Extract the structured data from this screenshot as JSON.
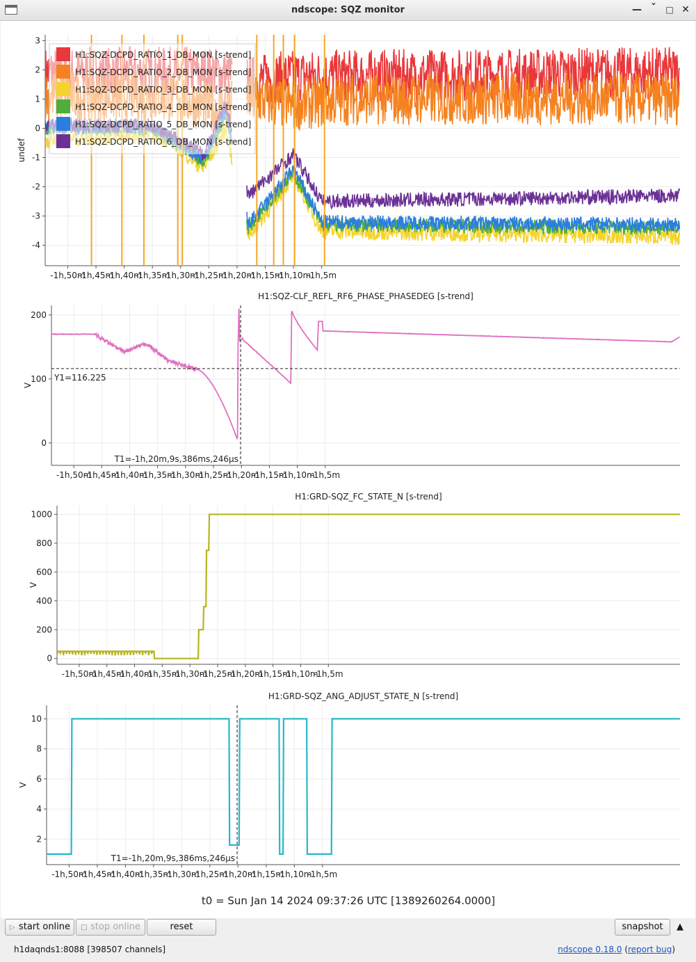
{
  "window": {
    "title": "ndscope: SQZ monitor"
  },
  "xaxis_ticks": [
    "-1h,50m",
    "-1h,45m",
    "-1h,40m",
    "-1h,35m",
    "-1h,30m",
    "-1h,25m",
    "-1h,20m",
    "-1h,15m",
    "-1h,10m",
    "-1h,5m"
  ],
  "x_range_min": [
    -114,
    -1.5
  ],
  "plots": [
    {
      "title": "",
      "ylabel": "undef",
      "ylim": [
        -4.7,
        3.2
      ],
      "yticks": [
        "3",
        "2",
        "1",
        "0",
        "-1",
        "-2",
        "-3",
        "-4"
      ],
      "legend": [
        {
          "name": "H1:SQZ-DCPD_RATIO_1_DB_MON [s-trend]",
          "color": "#e8383b"
        },
        {
          "name": "H1:SQZ-DCPD_RATIO_2_DB_MON [s-trend]",
          "color": "#f5821f"
        },
        {
          "name": "H1:SQZ-DCPD_RATIO_3_DB_MON [s-trend]",
          "color": "#f5d32d"
        },
        {
          "name": "H1:SQZ-DCPD_RATIO_4_DB_MON [s-trend]",
          "color": "#4fae3b"
        },
        {
          "name": "H1:SQZ-DCPD_RATIO_5_DB_MON [s-trend]",
          "color": "#2a7ee0"
        },
        {
          "name": "H1:SQZ-DCPD_RATIO_6_DB_MON [s-trend]",
          "color": "#6b3196"
        }
      ]
    },
    {
      "title": "H1:SQZ-CLF_REFL_RF6_PHASE_PHASEDEG [s-trend]",
      "ylabel": "V",
      "ylim": [
        -35,
        215
      ],
      "yticks": [
        "200",
        "100",
        "0"
      ],
      "color": "#e070c0",
      "cursor_y_label": "Y1=116.225",
      "cursor_y_value": 116.225,
      "cursor_t_label": "T1=-1h,20m,9s,386ms,246μs",
      "cursor_t_min": -80.16
    },
    {
      "title": "H1:GRD-SQZ_FC_STATE_N [s-trend]",
      "ylabel": "V",
      "ylim": [
        -40,
        1060
      ],
      "yticks": [
        "1000",
        "800",
        "600",
        "400",
        "200",
        "0"
      ],
      "color": "#b5b520"
    },
    {
      "title": "H1:GRD-SQZ_ANG_ADJUST_STATE_N [s-trend]",
      "ylabel": "V",
      "ylim": [
        0.3,
        10.9
      ],
      "yticks": [
        "10",
        "8",
        "6",
        "4",
        "2"
      ],
      "color": "#27b8c8",
      "cursor_t_label": "T1=-1h,20m,9s,386ms,246μs",
      "cursor_t_min": -80.16
    }
  ],
  "t0_label": "t0 = Sun Jan 14 2024 09:37:26 UTC [1389260264.0000]",
  "toolbar": {
    "start_online": "start online",
    "stop_online": "stop online",
    "reset": "reset",
    "snapshot": "snapshot"
  },
  "status": {
    "server": "h1daqnds1:8088  [398507 channels]",
    "version": "ndscope 0.18.0",
    "report_bug": "report bug"
  }
}
